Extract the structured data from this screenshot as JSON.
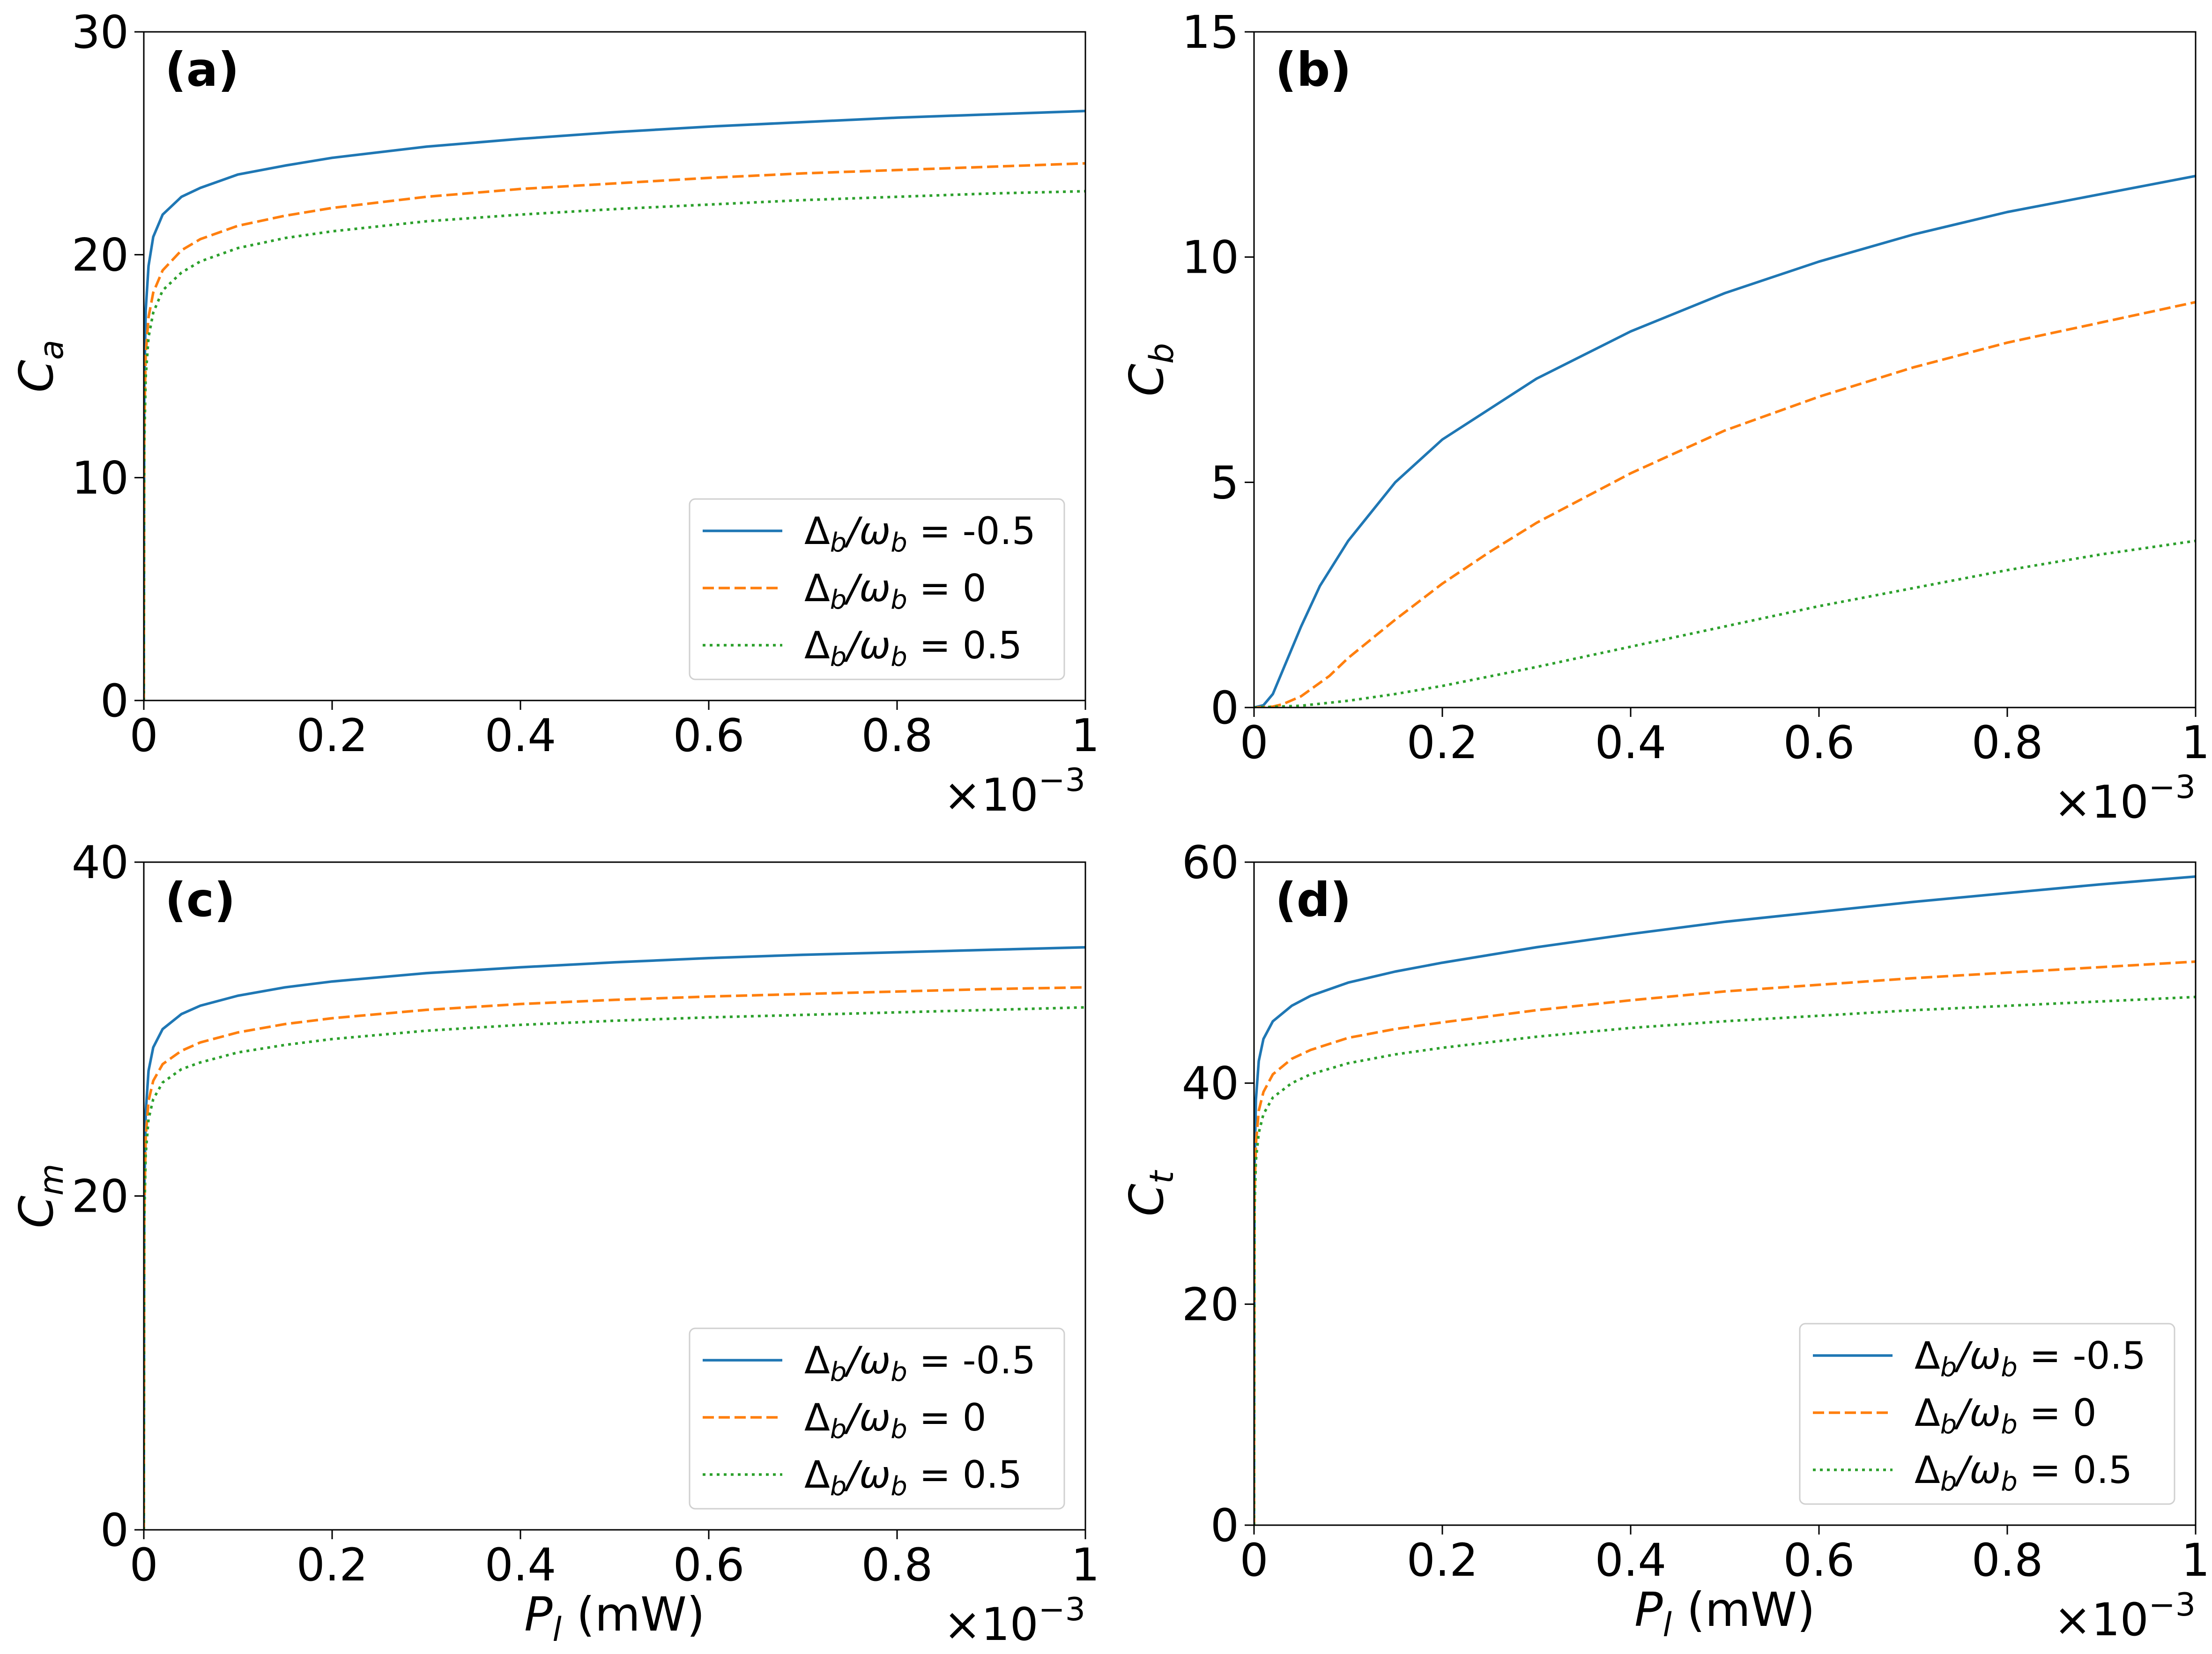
{
  "figure": {
    "multiplier_label": "×10",
    "multiplier_exponent": "−3",
    "legend_prefix": "Δ",
    "legend_sub": "b",
    "legend_omega": "/ω",
    "legend_eq": " = "
  },
  "chart_data": [
    {
      "type": "line",
      "panel": "(a)",
      "ylabel": "C",
      "ylabel_sub": "a",
      "xlabel": "",
      "xlabel_sub": "",
      "xlabel_unit": "",
      "xlim": [
        0,
        1.0
      ],
      "ylim": [
        0,
        30
      ],
      "xticks": [
        0,
        0.2,
        0.4,
        0.6,
        0.8,
        1.0
      ],
      "xtick_labels": [
        "0",
        "0.2",
        "0.4",
        "0.6",
        "0.8",
        "1"
      ],
      "yticks": [
        0,
        10,
        20,
        30
      ],
      "ytick_labels": [
        "0",
        "10",
        "20",
        "30"
      ],
      "x_scale_note": "×10^-3",
      "legend_position": "bottom-right",
      "series": [
        {
          "name": "-0.5",
          "color": "#1f77b4",
          "dash": "solid",
          "x": [
            0,
            0.0005,
            0.002,
            0.005,
            0.01,
            0.02,
            0.04,
            0.06,
            0.1,
            0.15,
            0.2,
            0.3,
            0.4,
            0.5,
            0.6,
            0.7,
            0.8,
            0.9,
            1.0
          ],
          "y": [
            0,
            14.0,
            17.5,
            19.5,
            20.8,
            21.8,
            22.6,
            23.0,
            23.6,
            24.0,
            24.35,
            24.85,
            25.2,
            25.5,
            25.75,
            25.95,
            26.15,
            26.3,
            26.45
          ]
        },
        {
          "name": "0",
          "color": "#ff7f0e",
          "dash": "dashed",
          "x": [
            0,
            0.0005,
            0.002,
            0.005,
            0.01,
            0.02,
            0.04,
            0.06,
            0.1,
            0.15,
            0.2,
            0.3,
            0.4,
            0.5,
            0.6,
            0.7,
            0.8,
            0.9,
            1.0
          ],
          "y": [
            0,
            12.5,
            15.5,
            17.2,
            18.3,
            19.3,
            20.2,
            20.7,
            21.3,
            21.75,
            22.1,
            22.6,
            22.95,
            23.2,
            23.45,
            23.65,
            23.8,
            23.95,
            24.1
          ]
        },
        {
          "name": "0.5",
          "color": "#2ca02c",
          "dash": "dotted",
          "x": [
            0,
            0.0005,
            0.002,
            0.005,
            0.01,
            0.02,
            0.04,
            0.06,
            0.1,
            0.15,
            0.2,
            0.3,
            0.4,
            0.5,
            0.6,
            0.7,
            0.8,
            0.9,
            1.0
          ],
          "y": [
            0,
            11.5,
            14.5,
            16.3,
            17.4,
            18.4,
            19.2,
            19.7,
            20.3,
            20.75,
            21.05,
            21.5,
            21.8,
            22.05,
            22.25,
            22.45,
            22.6,
            22.75,
            22.85
          ]
        }
      ]
    },
    {
      "type": "line",
      "panel": "(b)",
      "ylabel": "C",
      "ylabel_sub": "b",
      "xlabel": "",
      "xlabel_sub": "",
      "xlabel_unit": "",
      "xlim": [
        0,
        1.0
      ],
      "ylim": [
        0,
        15
      ],
      "xticks": [
        0,
        0.2,
        0.4,
        0.6,
        0.8,
        1.0
      ],
      "xtick_labels": [
        "0",
        "0.2",
        "0.4",
        "0.6",
        "0.8",
        "1"
      ],
      "yticks": [
        0,
        5,
        10,
        15
      ],
      "ytick_labels": [
        "0",
        "5",
        "10",
        "15"
      ],
      "x_scale_note": "×10^-3",
      "legend_position": "none",
      "series": [
        {
          "name": "-0.5",
          "color": "#1f77b4",
          "dash": "solid",
          "x": [
            0,
            0.01,
            0.02,
            0.03,
            0.05,
            0.07,
            0.1,
            0.15,
            0.2,
            0.3,
            0.4,
            0.5,
            0.6,
            0.7,
            0.8,
            0.9,
            1.0
          ],
          "y": [
            0,
            0.05,
            0.3,
            0.8,
            1.8,
            2.7,
            3.7,
            5.0,
            5.95,
            7.3,
            8.35,
            9.2,
            9.9,
            10.5,
            11.0,
            11.4,
            11.8
          ]
        },
        {
          "name": "0",
          "color": "#ff7f0e",
          "dash": "dashed",
          "x": [
            0,
            0.02,
            0.03,
            0.05,
            0.08,
            0.1,
            0.15,
            0.2,
            0.25,
            0.3,
            0.4,
            0.5,
            0.6,
            0.7,
            0.8,
            0.9,
            1.0
          ],
          "y": [
            0,
            0.02,
            0.07,
            0.25,
            0.7,
            1.1,
            1.95,
            2.75,
            3.45,
            4.1,
            5.2,
            6.15,
            6.9,
            7.55,
            8.1,
            8.55,
            9.0
          ]
        },
        {
          "name": "0.5",
          "color": "#2ca02c",
          "dash": "dotted",
          "x": [
            0,
            0.05,
            0.1,
            0.15,
            0.2,
            0.3,
            0.4,
            0.5,
            0.6,
            0.7,
            0.8,
            0.9,
            1.0
          ],
          "y": [
            0,
            0.04,
            0.15,
            0.3,
            0.48,
            0.9,
            1.35,
            1.8,
            2.25,
            2.65,
            3.05,
            3.4,
            3.7
          ]
        }
      ]
    },
    {
      "type": "line",
      "panel": "(c)",
      "ylabel": "C",
      "ylabel_sub": "m",
      "xlabel": "P",
      "xlabel_sub": "l",
      "xlabel_unit": " (mW)",
      "xlim": [
        0,
        1.0
      ],
      "ylim": [
        0,
        40
      ],
      "xticks": [
        0,
        0.2,
        0.4,
        0.6,
        0.8,
        1.0
      ],
      "xtick_labels": [
        "0",
        "0.2",
        "0.4",
        "0.6",
        "0.8",
        "1"
      ],
      "yticks": [
        0,
        20,
        40
      ],
      "ytick_labels": [
        "0",
        "20",
        "40"
      ],
      "x_scale_note": "×10^-3",
      "legend_position": "bottom-right",
      "series": [
        {
          "name": "-0.5",
          "color": "#1f77b4",
          "dash": "solid",
          "x": [
            0,
            0.0005,
            0.002,
            0.005,
            0.01,
            0.02,
            0.04,
            0.06,
            0.1,
            0.15,
            0.2,
            0.3,
            0.4,
            0.5,
            0.6,
            0.7,
            0.8,
            0.9,
            1.0
          ],
          "y": [
            0,
            20.0,
            25.0,
            27.5,
            28.9,
            30.0,
            30.9,
            31.4,
            32.0,
            32.5,
            32.85,
            33.35,
            33.7,
            34.0,
            34.25,
            34.45,
            34.6,
            34.75,
            34.9
          ]
        },
        {
          "name": "0",
          "color": "#ff7f0e",
          "dash": "dashed",
          "x": [
            0,
            0.0005,
            0.002,
            0.005,
            0.01,
            0.02,
            0.04,
            0.06,
            0.1,
            0.15,
            0.2,
            0.3,
            0.4,
            0.5,
            0.6,
            0.7,
            0.8,
            0.9,
            1.0
          ],
          "y": [
            0,
            19.0,
            23.5,
            25.7,
            26.9,
            27.9,
            28.7,
            29.2,
            29.8,
            30.3,
            30.65,
            31.15,
            31.5,
            31.75,
            31.95,
            32.1,
            32.25,
            32.4,
            32.5
          ]
        },
        {
          "name": "0.5",
          "color": "#2ca02c",
          "dash": "dotted",
          "x": [
            0,
            0.0005,
            0.002,
            0.005,
            0.01,
            0.02,
            0.04,
            0.06,
            0.1,
            0.15,
            0.2,
            0.3,
            0.4,
            0.5,
            0.6,
            0.7,
            0.8,
            0.9,
            1.0
          ],
          "y": [
            0,
            18.5,
            22.5,
            24.6,
            25.8,
            26.8,
            27.6,
            28.0,
            28.6,
            29.05,
            29.4,
            29.9,
            30.25,
            30.5,
            30.7,
            30.85,
            31.0,
            31.15,
            31.3
          ]
        }
      ]
    },
    {
      "type": "line",
      "panel": "(d)",
      "ylabel": "C",
      "ylabel_sub": "t",
      "xlabel": "P",
      "xlabel_sub": "l",
      "xlabel_unit": " (mW)",
      "xlim": [
        0,
        1.0
      ],
      "ylim": [
        0,
        60
      ],
      "xticks": [
        0,
        0.2,
        0.4,
        0.6,
        0.8,
        1.0
      ],
      "xtick_labels": [
        "0",
        "0.2",
        "0.4",
        "0.6",
        "0.8",
        "1"
      ],
      "yticks": [
        0,
        20,
        40,
        60
      ],
      "ytick_labels": [
        "0",
        "20",
        "40",
        "60"
      ],
      "x_scale_note": "×10^-3",
      "legend_position": "bottom-right",
      "series": [
        {
          "name": "-0.5",
          "color": "#1f77b4",
          "dash": "solid",
          "x": [
            0,
            0.0005,
            0.002,
            0.005,
            0.01,
            0.02,
            0.04,
            0.06,
            0.1,
            0.15,
            0.2,
            0.3,
            0.4,
            0.5,
            0.6,
            0.7,
            0.8,
            0.9,
            1.0
          ],
          "y": [
            0,
            32.0,
            38.5,
            42.0,
            44.0,
            45.6,
            47.0,
            47.9,
            49.1,
            50.1,
            50.9,
            52.3,
            53.5,
            54.6,
            55.5,
            56.4,
            57.2,
            58.0,
            58.7
          ]
        },
        {
          "name": "0",
          "color": "#ff7f0e",
          "dash": "dashed",
          "x": [
            0,
            0.0005,
            0.002,
            0.005,
            0.01,
            0.02,
            0.04,
            0.06,
            0.1,
            0.15,
            0.2,
            0.3,
            0.4,
            0.5,
            0.6,
            0.7,
            0.8,
            0.9,
            1.0
          ],
          "y": [
            0,
            30.0,
            34.5,
            37.5,
            39.2,
            40.8,
            42.2,
            43.0,
            44.1,
            44.9,
            45.5,
            46.6,
            47.5,
            48.3,
            48.9,
            49.5,
            50.0,
            50.5,
            51.0
          ]
        },
        {
          "name": "0.5",
          "color": "#2ca02c",
          "dash": "dotted",
          "x": [
            0,
            0.0005,
            0.002,
            0.005,
            0.01,
            0.02,
            0.04,
            0.06,
            0.1,
            0.15,
            0.2,
            0.3,
            0.4,
            0.5,
            0.6,
            0.7,
            0.8,
            0.9,
            1.0
          ],
          "y": [
            0,
            28.5,
            33.0,
            35.5,
            37.2,
            38.7,
            40.0,
            40.8,
            41.8,
            42.6,
            43.2,
            44.2,
            45.0,
            45.6,
            46.1,
            46.6,
            47.0,
            47.4,
            47.8
          ]
        }
      ]
    }
  ],
  "legend": {
    "entries": [
      {
        "value": "-0.5",
        "color": "#1f77b4",
        "dash": "solid"
      },
      {
        "value": "0",
        "color": "#ff7f0e",
        "dash": "dashed"
      },
      {
        "value": "0.5",
        "color": "#2ca02c",
        "dash": "dotted"
      }
    ]
  }
}
